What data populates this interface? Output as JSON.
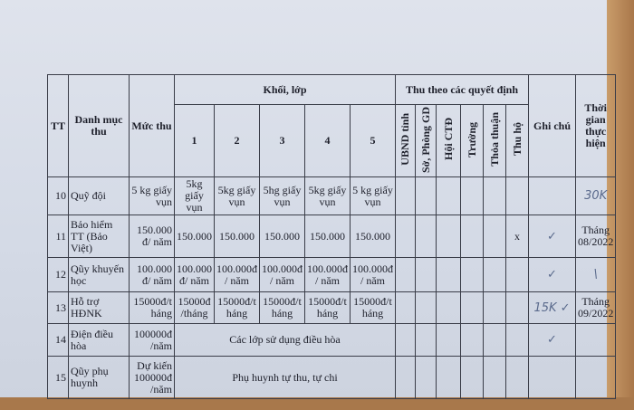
{
  "header": {
    "tt": "TT",
    "category": "Danh mục thu",
    "rate": "Mức thu",
    "grades_group": "Khối, lớp",
    "grades": [
      "1",
      "2",
      "3",
      "4",
      "5"
    ],
    "decisions_group": "Thu theo các quyết định",
    "decisions": [
      "UBND tỉnh",
      "Sở, Phòng GD",
      "Hội CTĐ",
      "Trường",
      "Thỏa thuận",
      "Thu hộ"
    ],
    "note": "Ghi chú",
    "time": "Thời gian thực hiện"
  },
  "rows": [
    {
      "tt": "10",
      "category": "Quỹ đội",
      "rate": "5 kg giấy vụn",
      "grades": [
        "5kg giấy vụn",
        "5kg giấy vụn",
        "5hg giấy vụn",
        "5kg giấy vụn",
        "5 kg giấy vụn"
      ],
      "thu_ho": "",
      "note": "",
      "time": "30K"
    },
    {
      "tt": "11",
      "category": "Bảo hiểm TT (Bảo Việt)",
      "rate": "150.000 đ/ năm",
      "grades": [
        "150.000",
        "150.000",
        "150.000",
        "150.000",
        "150.000"
      ],
      "thu_ho": "x",
      "note": "✓",
      "time": "Tháng 08/2022"
    },
    {
      "tt": "12",
      "category": "Qũy khuyến học",
      "rate": "100.000 đ/ năm",
      "grades": [
        "100.000 đ/ năm",
        "100.000đ / năm",
        "100.000đ / năm",
        "100.000đ / năm",
        "100.000đ / năm"
      ],
      "thu_ho": "",
      "note": "✓",
      "time": "\\"
    },
    {
      "tt": "13",
      "category": "Hỗ trợ HĐNK",
      "rate": "15000đ/t háng",
      "grades": [
        "15000đ /tháng",
        "15000đ/t háng",
        "15000đ/t háng",
        "15000đ/t háng",
        "15000đ/t háng"
      ],
      "thu_ho": "",
      "note": "15K ✓",
      "time": "Tháng 09/2022"
    },
    {
      "tt": "14",
      "category": "Điện điều hòa",
      "rate": "100000đ /năm",
      "merged": "Các lớp sử dụng điều hòa",
      "thu_ho": "",
      "note": "✓",
      "time": ""
    },
    {
      "tt": "15",
      "category": "Qũy phụ huynh",
      "rate": "Dự kiến 100000đ /năm",
      "merged": "Phụ huynh tự thu, tự chi",
      "thu_ho": "",
      "note": "",
      "time": ""
    }
  ]
}
